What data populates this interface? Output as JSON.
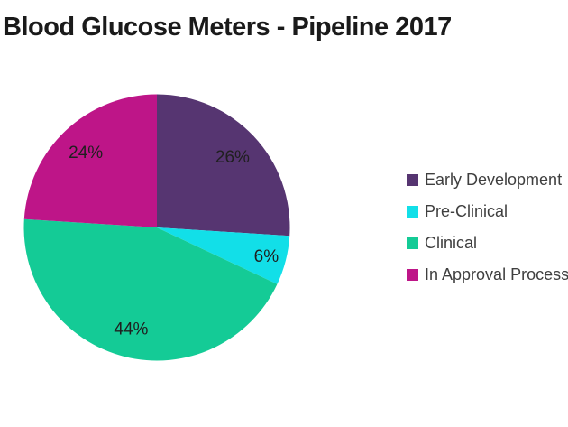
{
  "title": "Blood Glucose Meters - Pipeline 2017",
  "chart_data": {
    "type": "pie",
    "title": "Blood Glucose Meters - Pipeline 2017",
    "series": [
      {
        "name": "Early Development",
        "value": 26,
        "label": "26%",
        "color": "#563571"
      },
      {
        "name": "Pre-Clinical",
        "value": 6,
        "label": "6%",
        "color": "#12dfe8"
      },
      {
        "name": "Clinical",
        "value": 44,
        "label": "44%",
        "color": "#14cb96"
      },
      {
        "name": "In Approval Process",
        "value": 24,
        "label": "24%",
        "color": "#be1588"
      }
    ],
    "start_angle_deg": 0,
    "direction": "clockwise",
    "legend_position": "right",
    "data_labels": "percent-inside"
  },
  "colors": {
    "background": "#ffffff",
    "title_text": "#1a1a1a",
    "legend_text": "#3f3f3f",
    "label_text": "#1f1f1f"
  }
}
